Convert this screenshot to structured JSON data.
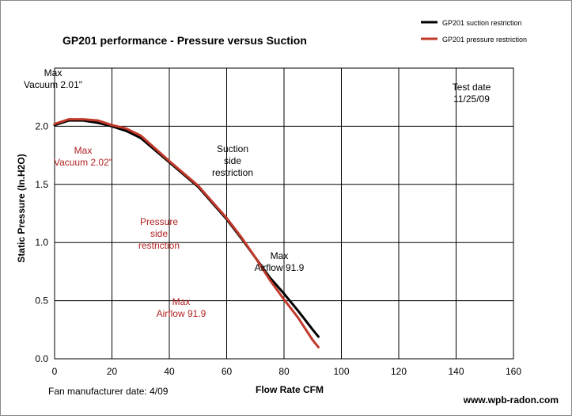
{
  "chart_data": {
    "type": "line",
    "title": "GP201 performance  -  Pressure versus Suction",
    "xlabel": "Flow Rate  CFM",
    "ylabel": "Static Pressure (In.H2O)",
    "xlim": [
      0,
      160
    ],
    "ylim": [
      0,
      2.5
    ],
    "xticks": [
      0,
      20,
      40,
      60,
      80,
      100,
      120,
      140,
      160
    ],
    "yticks": [
      0.0,
      0.5,
      1.0,
      1.5,
      2.0
    ],
    "xtick_labels": [
      "0",
      "20",
      "40",
      "60",
      "80",
      "100",
      "120",
      "140",
      "160"
    ],
    "ytick_labels": [
      "0.0",
      "0.5",
      "1.0",
      "1.5",
      "2.0"
    ],
    "grid": true,
    "legend_position": "top-right",
    "series": [
      {
        "name": "GP201 suction restriction",
        "color": "#000000",
        "x": [
          0,
          5,
          10,
          15,
          20,
          25,
          30,
          40,
          50,
          60,
          65,
          70,
          75,
          80,
          85,
          90,
          92
        ],
        "y": [
          2.01,
          2.05,
          2.05,
          2.03,
          2.0,
          1.96,
          1.9,
          1.69,
          1.48,
          1.2,
          1.04,
          0.87,
          0.7,
          0.56,
          0.41,
          0.25,
          0.19
        ]
      },
      {
        "name": "GP201 pressure restriction",
        "color": "#c0392b",
        "x": [
          0,
          5,
          10,
          15,
          20,
          25,
          30,
          40,
          50,
          60,
          65,
          70,
          75,
          80,
          85,
          90,
          92
        ],
        "y": [
          2.02,
          2.06,
          2.06,
          2.05,
          2.01,
          1.98,
          1.92,
          1.7,
          1.49,
          1.21,
          1.05,
          0.87,
          0.68,
          0.51,
          0.35,
          0.16,
          0.1
        ]
      }
    ],
    "annotations": [
      {
        "id": "max-vac-suction",
        "lines": [
          "Max",
          "Vacuum  2.01\""
        ],
        "color": "#000000"
      },
      {
        "id": "max-vac-pressure",
        "lines": [
          "Max",
          "Vacuum  2.02\""
        ],
        "color": "#b22222"
      },
      {
        "id": "suction-label",
        "lines": [
          "Suction",
          "side",
          "restriction"
        ],
        "color": "#000000"
      },
      {
        "id": "pressure-label",
        "lines": [
          "Pressure",
          "side",
          "restriction"
        ],
        "color": "#b22222"
      },
      {
        "id": "max-air-suction",
        "lines": [
          "Max",
          "Airflow  91.9"
        ],
        "color": "#000000"
      },
      {
        "id": "max-air-pressure",
        "lines": [
          "Max",
          "Airflow  91.9"
        ],
        "color": "#b22222"
      },
      {
        "id": "test-date",
        "lines": [
          "Test date",
          "11/25/09"
        ],
        "color": "#000000"
      }
    ],
    "footer_left": "Fan manufacturer date: 4/09",
    "footer_right": "www.wpb-radon.com"
  }
}
